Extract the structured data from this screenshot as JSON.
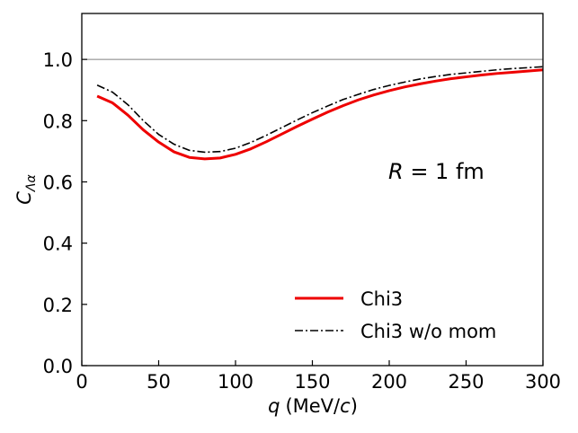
{
  "chart_data": {
    "type": "line",
    "xlabel": {
      "var": "q",
      "units": "(MeV/",
      "unit_var": "c",
      "close": ")"
    },
    "ylabel": {
      "var": "C",
      "sub": "Λα"
    },
    "xlim": [
      0,
      300
    ],
    "ylim": [
      0.0,
      1.15
    ],
    "x_ticks": [
      0,
      50,
      100,
      150,
      200,
      250,
      300
    ],
    "x_tick_labels": [
      "0",
      "50",
      "100",
      "150",
      "200",
      "250",
      "300"
    ],
    "y_ticks": [
      0.0,
      0.2,
      0.4,
      0.6,
      0.8,
      1.0
    ],
    "y_tick_labels": [
      "0.0",
      "0.2",
      "0.4",
      "0.6",
      "0.8",
      "1.0"
    ],
    "grid": false,
    "reference_line": {
      "y": 1.0,
      "color": "#808080"
    },
    "series": [
      {
        "name": "Chi3",
        "color": "#ee0000",
        "style": "solid",
        "x": [
          10,
          20,
          30,
          40,
          50,
          60,
          70,
          80,
          90,
          100,
          110,
          120,
          130,
          140,
          150,
          160,
          170,
          180,
          190,
          200,
          210,
          220,
          230,
          240,
          250,
          260,
          270,
          280,
          290,
          300
        ],
        "y": [
          0.88,
          0.858,
          0.818,
          0.77,
          0.73,
          0.698,
          0.68,
          0.675,
          0.678,
          0.69,
          0.708,
          0.731,
          0.756,
          0.781,
          0.805,
          0.828,
          0.849,
          0.868,
          0.884,
          0.898,
          0.91,
          0.92,
          0.929,
          0.937,
          0.943,
          0.949,
          0.954,
          0.958,
          0.962,
          0.966
        ]
      },
      {
        "name": "Chi3 w/o mom",
        "color": "#000000",
        "style": "dashdot",
        "x": [
          10,
          20,
          30,
          40,
          50,
          60,
          70,
          80,
          90,
          100,
          110,
          120,
          130,
          140,
          150,
          160,
          170,
          180,
          190,
          200,
          210,
          220,
          230,
          240,
          250,
          260,
          270,
          280,
          290,
          300
        ],
        "y": [
          0.916,
          0.893,
          0.852,
          0.8,
          0.755,
          0.723,
          0.703,
          0.697,
          0.699,
          0.71,
          0.729,
          0.752,
          0.777,
          0.802,
          0.826,
          0.848,
          0.869,
          0.886,
          0.902,
          0.915,
          0.926,
          0.936,
          0.944,
          0.951,
          0.956,
          0.961,
          0.966,
          0.97,
          0.973,
          0.976
        ]
      }
    ],
    "annotation": {
      "var": "R",
      "rest": " = 1 fm"
    },
    "legend_position": "lower-right"
  }
}
